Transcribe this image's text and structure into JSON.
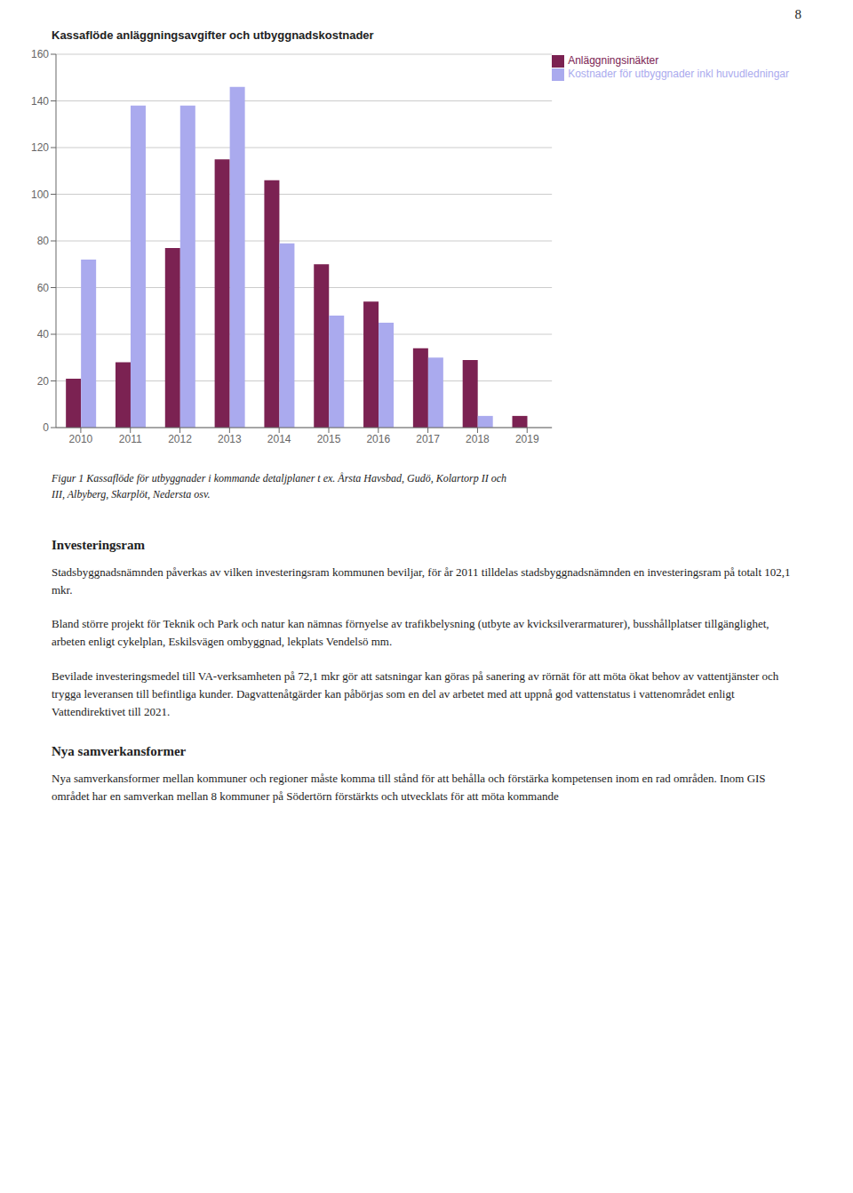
{
  "chart_data": {
    "type": "bar",
    "title": "Kassaflöde anläggningsavgifter och utbyggnadskostnader",
    "categories": [
      "2010",
      "2011",
      "2012",
      "2013",
      "2014",
      "2015",
      "2016",
      "2017",
      "2018",
      "2019"
    ],
    "series": [
      {
        "name": "Anläggningsinäkter",
        "color": "#7B2252",
        "values": [
          21,
          28,
          77,
          115,
          106,
          70,
          54,
          34,
          29,
          5
        ]
      },
      {
        "name": "Kostnader för utbyggnader inkl huvudledningar",
        "color": "#AAAAEE",
        "values": [
          72,
          138,
          138,
          146,
          79,
          48,
          45,
          30,
          5,
          0
        ]
      }
    ],
    "ylim": [
      0,
      160
    ],
    "yticks": [
      0,
      20,
      40,
      60,
      80,
      100,
      120,
      140,
      160
    ],
    "grid": true,
    "legend": "upper right",
    "annotations": [
      "8",
      "Figur 1 Kassaflöde för utbyggnader i kommande detaljplaner t ex. Årsta Havsbad, Gudö, Kolartorp II och",
      "III, Albyberg, Skarplöt, Nedersta osv.",
      "Investeringsram",
      "Stadsbyggnadsnämnden påverkas av vilken investeringsram kommunen beviljar, för år 2011 tilldelas stadsbyggnadsnämnden en investeringsram på totalt 102,1 mkr.",
      "Bland större projekt för Teknik och Park och natur kan nämnas förnyelse av trafikbelysning (utbyte av kvicksilverarmaturer), busshållplatser tillgänglighet, arbeten enligt cykelplan, Eskilsvägen ombyggnad, lekplats Vendelsö mm.",
      "Bevilade investeringsmedel till VA-verksamheten på 72,1 mkr gör att satsningar kan göras på sanering av rörnät för att möta ökat behov av vattentjänster och trygga leveransen till befintliga kunder. Dagvattenåtgärder kan påbörjas som en del av arbetet med att uppnå god vattenstatus i vattenområdet enligt Vattendirektivet till 2021.",
      "Nya samverkansformer",
      "Nya samverkansformer mellan kommuner och regioner måste komma till stånd för att behålla och förstärka kompetensen inom en rad områden. Inom GIS området har en samverkan mellan 8 kommuner på Södertörn förstärkts och utvecklats för att möta kommande"
    ]
  }
}
